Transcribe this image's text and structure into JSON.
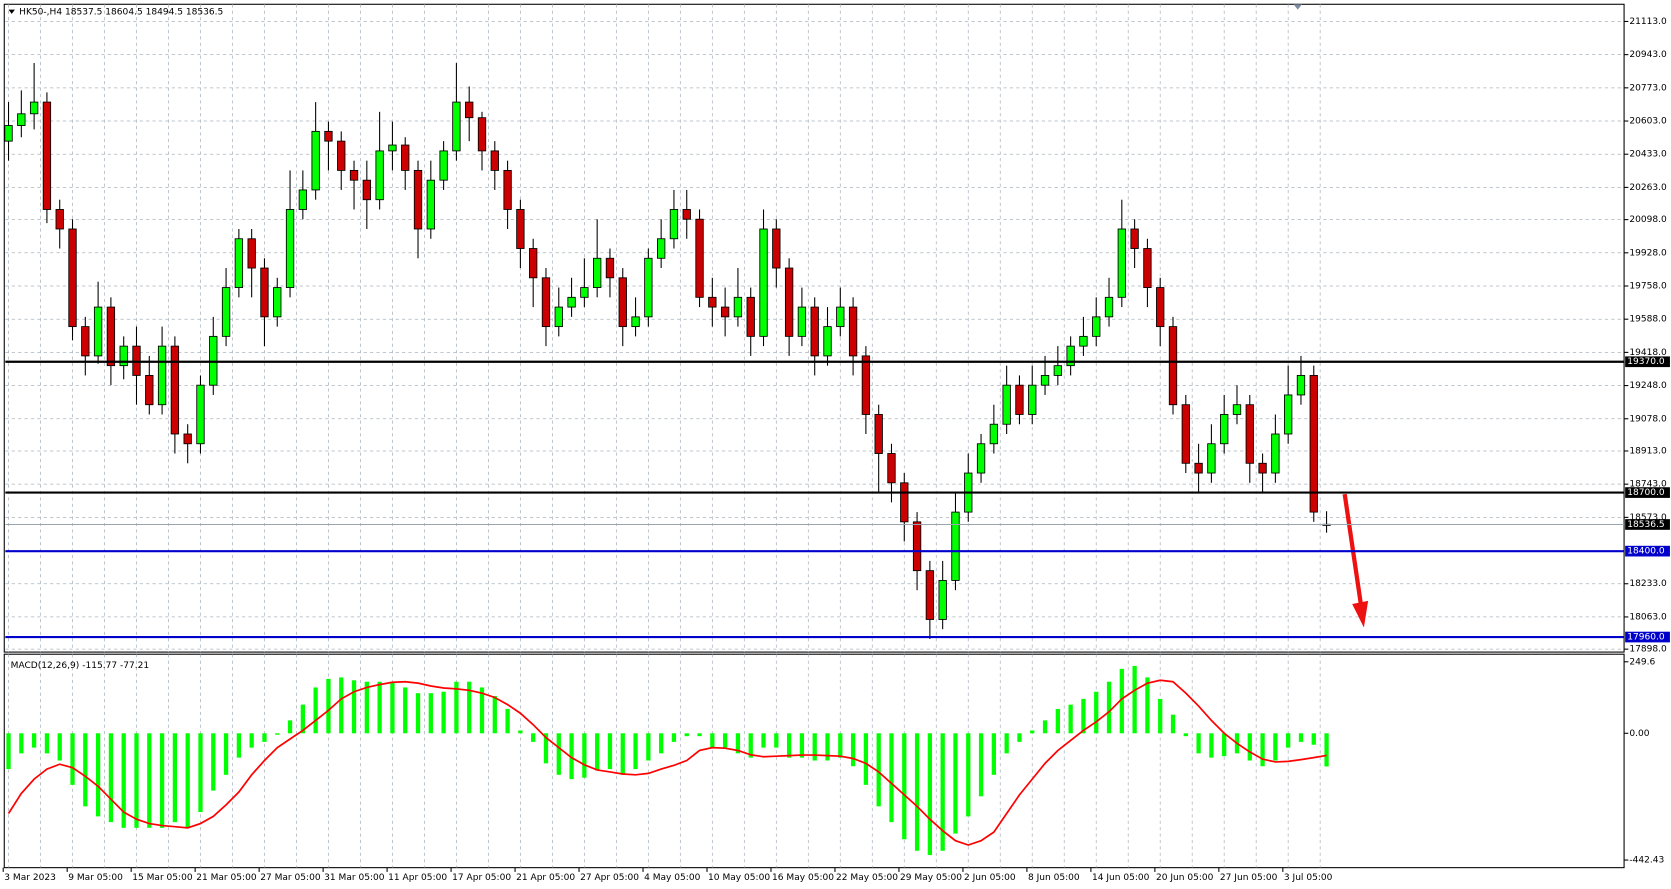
{
  "chart_data": {
    "type": "candlestick",
    "symbol": "HK50-,H4",
    "macd_label": "MACD(12,26,9)",
    "ylim": [
      17883,
      21201
    ],
    "yticks": [
      {
        "value": 21113,
        "label": "21113.0"
      },
      {
        "value": 20943,
        "label": "20943.0"
      },
      {
        "value": 20773,
        "label": "20773.0"
      },
      {
        "value": 20603,
        "label": "20603.0"
      },
      {
        "value": 20433,
        "label": "20433.0"
      },
      {
        "value": 20263,
        "label": "20263.0"
      },
      {
        "value": 20098,
        "label": "20098.0"
      },
      {
        "value": 19928,
        "label": "19928.0"
      },
      {
        "value": 19758,
        "label": "19758.0"
      },
      {
        "value": 19588,
        "label": "19588.0"
      },
      {
        "value": 19418,
        "label": "19418.0"
      },
      {
        "value": 19248,
        "label": "19248.0"
      },
      {
        "value": 19078,
        "label": "19078.0"
      },
      {
        "value": 18913,
        "label": "18913.0"
      },
      {
        "value": 18743,
        "label": "18743.0"
      },
      {
        "value": 18573,
        "label": "18573.0"
      },
      {
        "value": 18233,
        "label": "18233.0"
      },
      {
        "value": 18063,
        "label": "18063.0"
      },
      {
        "value": 17898,
        "label": "17898.0"
      }
    ],
    "levels": [
      {
        "value": 19370,
        "label": "19370.0",
        "color": "#000000"
      },
      {
        "value": 18700,
        "label": "18700.0",
        "color": "#000000"
      },
      {
        "value": 18400,
        "label": "18400.0",
        "color": "#0000cc"
      },
      {
        "value": 17960,
        "label": "17960.0",
        "color": "#0000cc"
      }
    ],
    "x_labels": [
      "3 Mar 2023",
      "9 Mar 05:00",
      "15 Mar 05:00",
      "21 Mar 05:00",
      "27 Mar 05:00",
      "31 Mar 05:00",
      "11 Apr 05:00",
      "17 Apr 05:00",
      "21 Apr 05:00",
      "27 Apr 05:00",
      "4 May 05:00",
      "10 May 05:00",
      "16 May 05:00",
      "22 May 05:00",
      "29 May 05:00",
      "2 Jun 05:00",
      "8 Jun 05:00",
      "14 Jun 05:00",
      "20 Jun 05:00",
      "27 Jun 05:00",
      "3 Jul 05:00"
    ],
    "open": [
      20500,
      20580,
      20640,
      20700,
      20150,
      20050,
      19550,
      19400,
      19650,
      19350,
      19450,
      19300,
      19150,
      19450,
      19000,
      18950,
      19250,
      19500,
      19750,
      20000,
      19850,
      19600,
      19750,
      20150,
      20250,
      20550,
      20500,
      20350,
      20300,
      20200,
      20450,
      20480,
      20350,
      20050,
      20300,
      20450,
      20700,
      20620,
      20450,
      20350,
      20150,
      19950,
      19800,
      19550,
      19650,
      19700,
      19750,
      19900,
      19800,
      19550,
      19600,
      19900,
      20000,
      20150,
      20100,
      19700,
      19650,
      19600,
      19700,
      19500,
      20050,
      19850,
      19500,
      19650,
      19400,
      19550,
      19650,
      19400,
      19100,
      18900,
      18750,
      18550,
      18300,
      18050,
      18250,
      18600,
      18800,
      18950,
      19050,
      19250,
      19100,
      19250,
      19300,
      19350,
      19450,
      19500,
      19600,
      19700,
      20050,
      19950,
      19750,
      19550,
      19150,
      18850,
      18800,
      18950,
      19100,
      19150,
      18850,
      18800,
      19000,
      19200,
      19300,
      18537.5
    ],
    "high": [
      20700,
      20760,
      20900,
      20750,
      20200,
      20100,
      19600,
      19780,
      19700,
      19500,
      19550,
      19400,
      19550,
      19500,
      19050,
      19300,
      19600,
      19850,
      20050,
      20050,
      19900,
      19800,
      20350,
      20350,
      20700,
      20600,
      20550,
      20400,
      20400,
      20650,
      20600,
      20520,
      20400,
      20400,
      20500,
      20900,
      20780,
      20650,
      20500,
      20400,
      20200,
      20000,
      19850,
      19750,
      19800,
      19900,
      20100,
      19950,
      19850,
      19700,
      19950,
      20100,
      20250,
      20250,
      20150,
      19800,
      19750,
      19850,
      19750,
      20150,
      20100,
      19900,
      19750,
      19700,
      19650,
      19750,
      19700,
      19450,
      19150,
      18950,
      18800,
      18600,
      18350,
      18350,
      18700,
      18900,
      19000,
      19150,
      19350,
      19300,
      19350,
      19400,
      19450,
      19500,
      19600,
      19700,
      19800,
      20200,
      20100,
      20000,
      19800,
      19600,
      19200,
      18950,
      19050,
      19200,
      19250,
      19200,
      18900,
      19100,
      19350,
      19400,
      19350,
      18604.5
    ],
    "low": [
      20400,
      20520,
      20560,
      20080,
      19950,
      19480,
      19300,
      19360,
      19250,
      19280,
      19150,
      19100,
      19100,
      18900,
      18850,
      18900,
      19200,
      19450,
      19700,
      19700,
      19450,
      19550,
      19700,
      20100,
      20200,
      20350,
      20250,
      20150,
      20050,
      20150,
      20350,
      20250,
      19900,
      20000,
      20250,
      20400,
      20500,
      20350,
      20250,
      20050,
      19850,
      19650,
      19450,
      19500,
      19600,
      19650,
      19700,
      19700,
      19450,
      19500,
      19550,
      19850,
      19950,
      20000,
      19650,
      19550,
      19500,
      19550,
      19400,
      19450,
      19750,
      19400,
      19450,
      19300,
      19350,
      19500,
      19300,
      19000,
      18700,
      18650,
      18450,
      18200,
      17950,
      18000,
      18200,
      18550,
      18750,
      18900,
      19000,
      19050,
      19050,
      19200,
      19250,
      19300,
      19400,
      19450,
      19550,
      19650,
      19850,
      19650,
      19450,
      19100,
      18800,
      18700,
      18750,
      18900,
      19050,
      18750,
      18700,
      18750,
      18950,
      19150,
      18550,
      18494.5
    ],
    "close": [
      20580,
      20640,
      20700,
      20150,
      20050,
      19550,
      19400,
      19650,
      19350,
      19450,
      19300,
      19150,
      19450,
      19000,
      18950,
      19250,
      19500,
      19750,
      20000,
      19850,
      19600,
      19750,
      20150,
      20250,
      20550,
      20500,
      20350,
      20300,
      20200,
      20450,
      20480,
      20350,
      20050,
      20300,
      20450,
      20700,
      20620,
      20450,
      20350,
      20150,
      19950,
      19800,
      19550,
      19650,
      19700,
      19750,
      19900,
      19800,
      19550,
      19600,
      19900,
      20000,
      20150,
      20100,
      19700,
      19650,
      19600,
      19700,
      19500,
      20050,
      19850,
      19500,
      19650,
      19400,
      19550,
      19650,
      19400,
      19100,
      18900,
      18750,
      18550,
      18300,
      18050,
      18250,
      18600,
      18800,
      18950,
      19050,
      19250,
      19100,
      19250,
      19300,
      19350,
      19450,
      19500,
      19600,
      19700,
      20050,
      19950,
      19750,
      19550,
      19150,
      18850,
      18800,
      18950,
      19100,
      19150,
      18850,
      18800,
      19000,
      19200,
      19300,
      18600,
      18536.5
    ],
    "up_color": "#00ff00",
    "down_color": "#cc0000",
    "macd_ylim": [
      -469,
      276
    ],
    "macd_yticks": [
      249.6,
      {
        "value": 0,
        "label": "0.00"
      },
      -442.43
    ],
    "histogram_color": "#00ff00",
    "signal_color": "#ff0000",
    "histogram": [
      -125,
      -70,
      -50,
      -70,
      -95,
      -180,
      -255,
      -290,
      -310,
      -330,
      -330,
      -330,
      -330,
      -310,
      -330,
      -275,
      -200,
      -145,
      -85,
      -50,
      -30,
      -5,
      45,
      100,
      160,
      190,
      195,
      185,
      180,
      180,
      180,
      160,
      140,
      140,
      145,
      180,
      180,
      160,
      130,
      85,
      10,
      -30,
      -105,
      -145,
      -160,
      -155,
      -130,
      -125,
      -145,
      -125,
      -95,
      -70,
      -30,
      -10,
      -10,
      -50,
      -50,
      -70,
      -85,
      -50,
      -50,
      -85,
      -85,
      -95,
      -95,
      -85,
      -115,
      -180,
      -255,
      -310,
      -370,
      -410,
      -425,
      -410,
      -350,
      -290,
      -220,
      -145,
      -70,
      -30,
      10,
      45,
      85,
      100,
      120,
      145,
      180,
      225,
      235,
      195,
      120,
      65,
      -10,
      -70,
      -85,
      -80,
      -70,
      -95,
      -115,
      -95,
      -50,
      -30,
      -40,
      -115.77
    ],
    "signal": [
      -280,
      -210,
      -160,
      -125,
      -108,
      -120,
      -150,
      -185,
      -230,
      -275,
      -300,
      -315,
      -322,
      -326,
      -330,
      -315,
      -290,
      -250,
      -205,
      -145,
      -95,
      -50,
      -20,
      10,
      45,
      80,
      120,
      145,
      160,
      170,
      178,
      180,
      175,
      165,
      158,
      155,
      150,
      140,
      125,
      100,
      70,
      30,
      -15,
      -50,
      -85,
      -110,
      -128,
      -135,
      -142,
      -145,
      -140,
      -125,
      -112,
      -95,
      -60,
      -50,
      -52,
      -60,
      -75,
      -82,
      -80,
      -78,
      -76,
      -76,
      -78,
      -80,
      -88,
      -105,
      -135,
      -175,
      -215,
      -255,
      -300,
      -340,
      -375,
      -390,
      -375,
      -345,
      -280,
      -215,
      -160,
      -105,
      -60,
      -25,
      10,
      40,
      75,
      120,
      150,
      175,
      185,
      180,
      140,
      95,
      45,
      0,
      -35,
      -65,
      -90,
      -100,
      -98,
      -92,
      -85,
      -77.21
    ]
  }
}
